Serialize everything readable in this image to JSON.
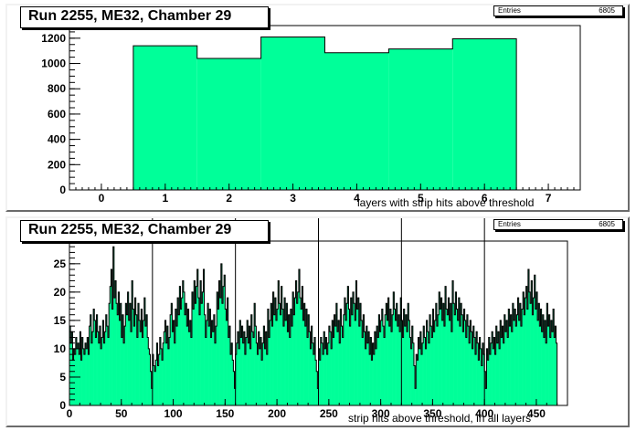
{
  "chart_data": [
    {
      "type": "bar",
      "title": "Run 2255, ME32, Chamber 29",
      "stats": {
        "label": "Entries",
        "value": "6805"
      },
      "xlabel": "layers with strip hits above threshold",
      "ylabel": "",
      "xlim": [
        -0.5,
        7.5
      ],
      "ylim": [
        0,
        1300
      ],
      "xticks": [
        "0",
        "1",
        "2",
        "3",
        "4",
        "5",
        "6",
        "7"
      ],
      "yticks": [
        "0",
        "200",
        "400",
        "600",
        "800",
        "1000",
        "1200"
      ],
      "categories": [
        1,
        2,
        3,
        4,
        5,
        6
      ],
      "values": [
        1140,
        1040,
        1210,
        1085,
        1115,
        1195
      ],
      "fill_color": "#00ff99"
    },
    {
      "type": "area",
      "title": "Run 2255, ME32, Chamber 29",
      "stats": {
        "label": "Entries",
        "value": "6805"
      },
      "xlabel": "strip hits above threshold, in all layers",
      "ylabel": "",
      "xlim": [
        0,
        480
      ],
      "ylim": [
        0,
        29
      ],
      "xticks": [
        "0",
        "50",
        "100",
        "150",
        "200",
        "250",
        "300",
        "350",
        "400",
        "450"
      ],
      "yticks": [
        "0",
        "5",
        "10",
        "15",
        "20",
        "25"
      ],
      "separators": [
        80,
        160,
        240,
        320,
        400
      ],
      "fill_color": "#00ff99",
      "values": [
        14,
        11,
        13,
        8,
        10,
        9,
        12,
        10,
        11,
        9,
        13,
        8,
        12,
        10,
        9,
        11,
        10,
        12,
        9,
        14,
        16,
        11,
        13,
        17,
        15,
        12,
        16,
        13,
        11,
        14,
        10,
        12,
        15,
        11,
        13,
        16,
        14,
        12,
        18,
        21,
        24,
        17,
        28,
        19,
        22,
        18,
        16,
        20,
        15,
        18,
        12,
        16,
        11,
        14,
        18,
        16,
        20,
        15,
        18,
        13,
        22,
        17,
        14,
        19,
        16,
        12,
        18,
        15,
        13,
        17,
        12,
        15,
        19,
        14,
        16,
        12,
        10,
        9,
        6,
        3,
        9,
        7,
        6,
        8,
        11,
        7,
        9,
        12,
        10,
        8,
        11,
        13,
        15,
        11,
        14,
        10,
        12,
        16,
        18,
        13,
        15,
        11,
        17,
        14,
        19,
        16,
        21,
        17,
        19,
        22,
        20,
        16,
        18,
        14,
        17,
        13,
        15,
        12,
        20,
        17,
        22,
        18,
        21,
        24,
        19,
        16,
        22,
        18,
        20,
        24,
        16,
        12,
        15,
        18,
        14,
        17,
        12,
        15,
        13,
        16,
        11,
        14,
        20,
        17,
        22,
        19,
        25,
        18,
        21,
        23,
        17,
        15,
        19,
        12,
        14,
        9,
        11,
        8,
        6,
        3,
        9,
        11,
        13,
        10,
        15,
        12,
        14,
        11,
        13,
        9,
        12,
        15,
        11,
        14,
        10,
        16,
        13,
        12,
        18,
        14,
        11,
        9,
        13,
        10,
        12,
        8,
        11,
        14,
        10,
        13,
        9,
        17,
        12,
        15,
        18,
        14,
        20,
        16,
        19,
        15,
        17,
        22,
        18,
        16,
        21,
        17,
        14,
        19,
        15,
        18,
        13,
        16,
        12,
        17,
        14,
        20,
        16,
        19,
        22,
        18,
        20,
        24,
        19,
        17,
        21,
        15,
        18,
        14,
        17,
        12,
        16,
        13,
        10,
        14,
        11,
        9,
        12,
        8,
        6,
        3,
        10,
        8,
        12,
        11,
        9,
        13,
        10,
        12,
        9,
        11,
        14,
        13,
        10,
        15,
        12,
        16,
        14,
        18,
        13,
        15,
        11,
        17,
        14,
        12,
        16,
        19,
        15,
        18,
        21,
        17,
        14,
        19,
        16,
        20,
        18,
        15,
        22,
        17,
        19,
        14,
        18,
        15,
        12,
        16,
        13,
        10,
        14,
        11,
        13,
        9,
        12,
        8,
        11,
        9,
        13,
        10,
        14,
        12,
        16,
        13,
        15,
        17,
        14,
        12,
        16,
        18,
        15,
        19,
        14,
        17,
        13,
        16,
        20,
        17,
        15,
        18,
        14,
        16,
        13,
        19,
        15,
        12,
        17,
        14,
        16,
        13,
        18,
        15,
        12,
        10,
        14,
        11,
        7,
        3,
        9,
        8,
        12,
        10,
        13,
        9,
        11,
        14,
        12,
        10,
        15,
        13,
        11,
        16,
        14,
        12,
        17,
        13,
        15,
        18,
        14,
        16,
        20,
        17,
        19,
        15,
        18,
        14,
        21,
        17,
        16,
        19,
        15,
        18,
        13,
        22,
        18,
        16,
        20,
        17,
        15,
        19,
        14,
        18,
        16,
        13,
        17,
        15,
        12,
        16,
        14,
        11,
        15,
        13,
        10,
        14,
        12,
        9,
        13,
        11,
        8,
        12,
        10,
        7,
        11,
        9,
        6,
        3,
        10,
        8,
        12,
        9,
        11,
        13,
        10,
        12,
        9,
        14,
        11,
        13,
        10,
        15,
        12,
        14,
        11,
        16,
        13,
        15,
        12,
        17,
        14,
        16,
        13,
        18,
        15,
        17,
        14,
        16,
        19,
        15,
        18,
        14,
        17,
        20,
        16,
        19,
        21,
        17,
        24,
        20,
        18,
        22,
        16,
        19,
        23,
        17,
        20,
        15,
        18,
        14,
        17,
        13,
        16,
        12,
        15,
        11,
        18,
        14,
        16,
        12,
        15,
        13,
        17,
        12,
        14,
        11
      ]
    }
  ]
}
